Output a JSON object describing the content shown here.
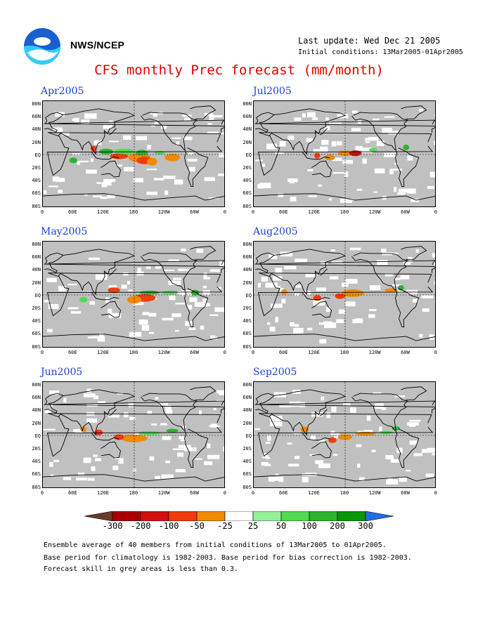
{
  "header": {
    "org": "NWS/NCEP",
    "last_update": "Last update: Wed Dec 21 2005",
    "initial_conditions": "Initial conditions: 13Mar2005-01Apr2005",
    "title": "CFS monthly Prec forecast (mm/month)"
  },
  "panels": [
    {
      "month": "Apr2005"
    },
    {
      "month": "Jul2005"
    },
    {
      "month": "May2005"
    },
    {
      "month": "Aug2005"
    },
    {
      "month": "Jun2005"
    },
    {
      "month": "Sep2005"
    }
  ],
  "axes": {
    "lat_labels": [
      "80N",
      "60N",
      "40N",
      "20N",
      "EQ",
      "20S",
      "40S",
      "60S",
      "80S"
    ],
    "lon_labels": [
      "0",
      "60E",
      "120E",
      "180",
      "120W",
      "60W",
      "0"
    ]
  },
  "colorbar": {
    "labels": [
      "-300",
      "-200",
      "-100",
      "-50",
      "-25",
      "25",
      "50",
      "100",
      "200",
      "300"
    ],
    "colors": [
      "#6b3a2a",
      "#a80000",
      "#d21010",
      "#f03c0a",
      "#f08a00",
      "#ffffff",
      "#96f096",
      "#50dc50",
      "#2cb42c",
      "#0a960a",
      "#1e6ee6"
    ]
  },
  "footer": {
    "line1": "Ensemble average of 40 members from initial conditions of 13Mar2005 to 01Apr2005.",
    "line2": "Base period for climatology is 1982-2003. Base period for bias correction is 1982-2003.",
    "line3": "Forecast skill in grey areas is less than 0.3."
  }
}
